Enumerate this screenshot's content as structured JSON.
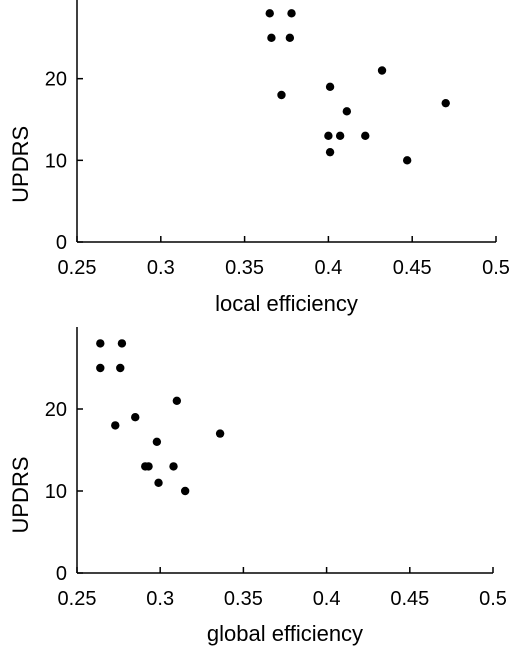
{
  "chart_data": [
    {
      "type": "scatter",
      "xlabel": "local efficiency",
      "ylabel": "UPDRS",
      "xlim": [
        0.25,
        0.5
      ],
      "ylim": [
        0,
        30
      ],
      "xticks": [
        "0.25",
        "0.3",
        "0.35",
        "0.4",
        "0.45",
        "0.5"
      ],
      "yticks": [
        "0",
        "10",
        "20"
      ],
      "grid": false,
      "marker_color": "#000000",
      "points": [
        {
          "x": 0.365,
          "y": 28
        },
        {
          "x": 0.378,
          "y": 28
        },
        {
          "x": 0.366,
          "y": 25
        },
        {
          "x": 0.377,
          "y": 25
        },
        {
          "x": 0.372,
          "y": 18
        },
        {
          "x": 0.432,
          "y": 21
        },
        {
          "x": 0.401,
          "y": 19
        },
        {
          "x": 0.47,
          "y": 17
        },
        {
          "x": 0.411,
          "y": 16
        },
        {
          "x": 0.4,
          "y": 13
        },
        {
          "x": 0.407,
          "y": 13
        },
        {
          "x": 0.422,
          "y": 13
        },
        {
          "x": 0.401,
          "y": 11
        },
        {
          "x": 0.447,
          "y": 10
        }
      ]
    },
    {
      "type": "scatter",
      "xlabel": "global efficiency",
      "ylabel": "UPDRS",
      "xlim": [
        0.25,
        0.5
      ],
      "ylim": [
        0,
        30
      ],
      "xticks": [
        "0.25",
        "0.3",
        "0.35",
        "0.4",
        "0.45",
        "0.5"
      ],
      "yticks": [
        "0",
        "10",
        "20"
      ],
      "grid": false,
      "marker_color": "#000000",
      "points": [
        {
          "x": 0.264,
          "y": 28
        },
        {
          "x": 0.277,
          "y": 28
        },
        {
          "x": 0.264,
          "y": 25
        },
        {
          "x": 0.276,
          "y": 25
        },
        {
          "x": 0.273,
          "y": 18
        },
        {
          "x": 0.285,
          "y": 19
        },
        {
          "x": 0.31,
          "y": 21
        },
        {
          "x": 0.336,
          "y": 17
        },
        {
          "x": 0.298,
          "y": 16
        },
        {
          "x": 0.291,
          "y": 13
        },
        {
          "x": 0.293,
          "y": 13
        },
        {
          "x": 0.308,
          "y": 13
        },
        {
          "x": 0.299,
          "y": 11
        },
        {
          "x": 0.315,
          "y": 10
        }
      ]
    }
  ]
}
